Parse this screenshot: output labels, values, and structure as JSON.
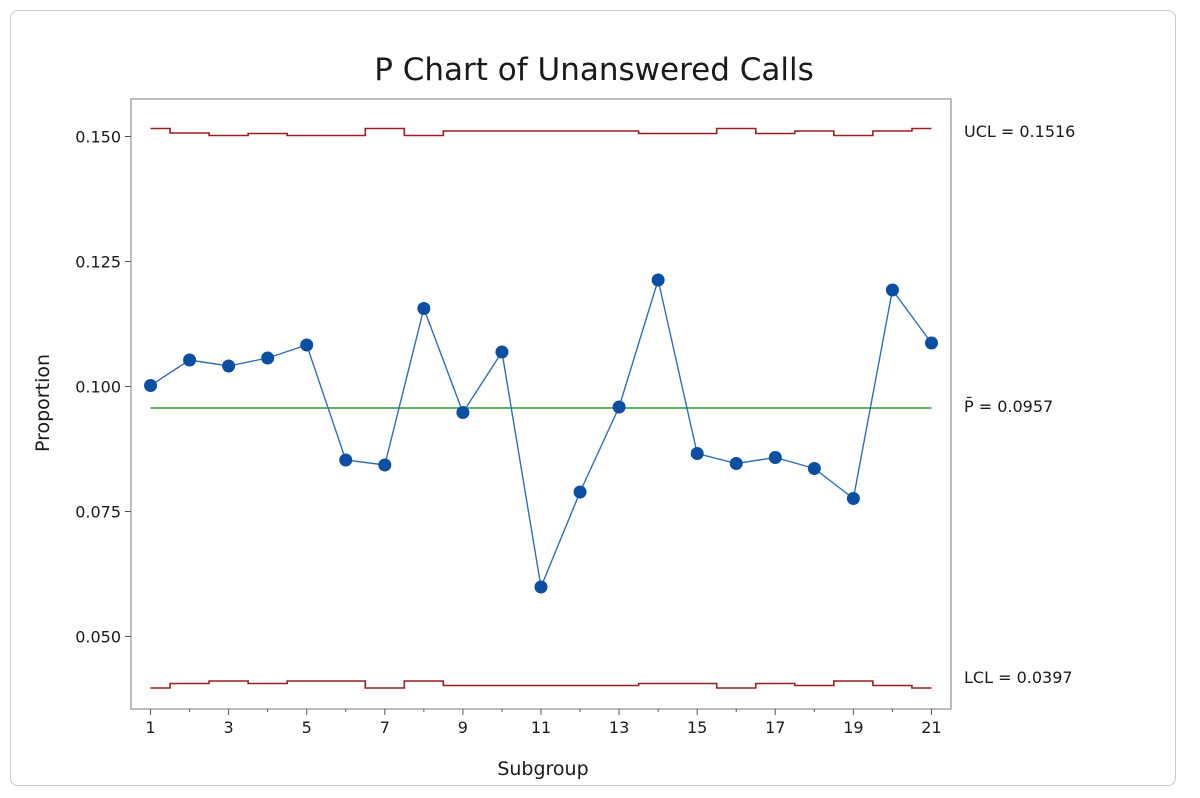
{
  "chart_data": {
    "type": "line",
    "title": "P Chart of Unanswered Calls",
    "xlabel": "Subgroup",
    "ylabel": "Proportion",
    "xlim": [
      0.5,
      21.5
    ],
    "ylim": [
      0.0355,
      0.1575
    ],
    "x_ticks": [
      1,
      3,
      5,
      7,
      9,
      11,
      13,
      15,
      17,
      19,
      21
    ],
    "x_tick_labels": [
      "1",
      "3",
      "5",
      "7",
      "9",
      "11",
      "13",
      "15",
      "17",
      "19",
      "21"
    ],
    "y_ticks": [
      0.05,
      0.075,
      0.1,
      0.125,
      0.15
    ],
    "y_tick_labels": [
      "0.050",
      "0.075",
      "0.100",
      "0.125",
      "0.150"
    ],
    "grid": false,
    "series": [
      {
        "x": [
          1,
          2,
          3,
          4,
          5,
          6,
          7,
          8,
          9,
          10,
          11,
          12,
          13,
          14,
          15,
          16,
          17,
          18,
          19,
          20,
          21
        ],
        "values": [
          0.1002,
          0.1053,
          0.1041,
          0.1057,
          0.1083,
          0.0853,
          0.0843,
          0.1156,
          0.0948,
          0.1069,
          0.0599,
          0.0789,
          0.0959,
          0.1213,
          0.0866,
          0.0846,
          0.0858,
          0.0836,
          0.0776,
          0.1193,
          0.1087
        ],
        "color": "#2f6eba",
        "marker_color": "#0b4ea2"
      }
    ],
    "ucl": [
      0.1516,
      0.1507,
      0.1502,
      0.1506,
      0.1502,
      0.1502,
      0.1516,
      0.1502,
      0.1511,
      0.1511,
      0.1511,
      0.1511,
      0.1511,
      0.1506,
      0.1506,
      0.1516,
      0.1506,
      0.1511,
      0.1502,
      0.1511,
      0.1516
    ],
    "lcl": [
      0.0397,
      0.0406,
      0.0411,
      0.0406,
      0.0411,
      0.0411,
      0.0397,
      0.0411,
      0.0402,
      0.0402,
      0.0402,
      0.0402,
      0.0402,
      0.0406,
      0.0406,
      0.0397,
      0.0406,
      0.0402,
      0.0411,
      0.0402,
      0.0397
    ],
    "center": 0.0957,
    "ucl_label": "UCL = 0.1516",
    "center_label": "P̄ = 0.0957",
    "lcl_label": "LCL = 0.0397",
    "limit_color": "#9a1f1f",
    "center_color": "#2e9a2e"
  }
}
